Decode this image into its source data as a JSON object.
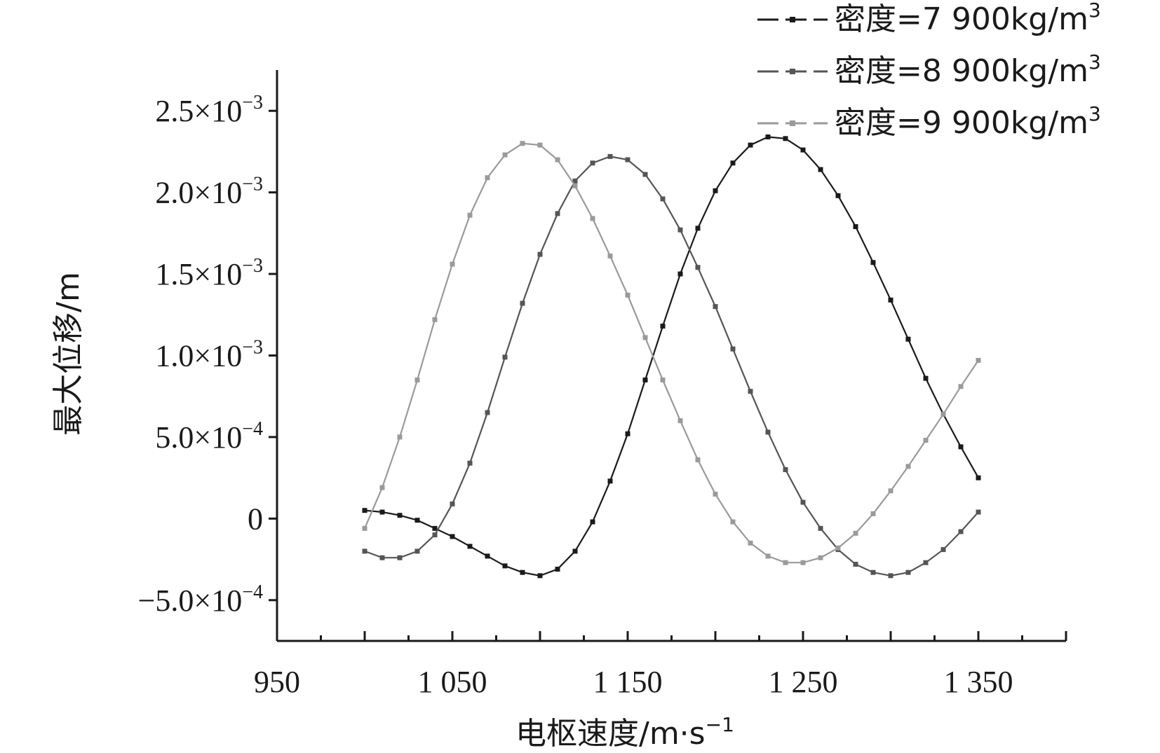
{
  "chart_data": {
    "type": "line",
    "title": "",
    "xlabel": "电枢速度/m·s",
    "xlabel_exp": "−1",
    "ylabel": "最大位移/m",
    "xlim": [
      950,
      1400
    ],
    "ylim": [
      -0.00075,
      0.00275
    ],
    "x_ticks": [
      {
        "value": 950,
        "label": "950"
      },
      {
        "value": 1050,
        "label": "1 050"
      },
      {
        "value": 1150,
        "label": "1 150"
      },
      {
        "value": 1250,
        "label": "1 250"
      },
      {
        "value": 1350,
        "label": "1 350"
      }
    ],
    "y_ticks": [
      {
        "value": 0.0025,
        "mant": "2.5×10",
        "exp": "−3"
      },
      {
        "value": 0.002,
        "mant": "2.0×10",
        "exp": "−3"
      },
      {
        "value": 0.0015,
        "mant": "1.5×10",
        "exp": "−3"
      },
      {
        "value": 0.001,
        "mant": "1.0×10",
        "exp": "−3"
      },
      {
        "value": 0.0005,
        "mant": "5.0×10",
        "exp": "−4"
      },
      {
        "value": 0,
        "mant": "0",
        "exp": ""
      },
      {
        "value": -0.0005,
        "mant": "−5.0×10",
        "exp": "−4"
      }
    ],
    "x": [
      1000,
      1010,
      1020,
      1030,
      1040,
      1050,
      1060,
      1070,
      1080,
      1090,
      1100,
      1110,
      1120,
      1130,
      1140,
      1150,
      1160,
      1170,
      1180,
      1190,
      1200,
      1210,
      1220,
      1230,
      1240,
      1250,
      1260,
      1270,
      1280,
      1290,
      1300,
      1310,
      1320,
      1330,
      1340,
      1350
    ],
    "series": [
      {
        "name": "密度=7 900kg/m",
        "name_exp": "3",
        "color": "#1a1a1a",
        "values": [
          5e-05,
          4e-05,
          2e-05,
          -1e-05,
          -6e-05,
          -0.00011,
          -0.00017,
          -0.00023,
          -0.00029,
          -0.00033,
          -0.00035,
          -0.00031,
          -0.0002,
          -2e-05,
          0.00023,
          0.00052,
          0.00085,
          0.00118,
          0.0015,
          0.00178,
          0.00201,
          0.00218,
          0.00229,
          0.00234,
          0.00233,
          0.00226,
          0.00214,
          0.00198,
          0.00179,
          0.00157,
          0.00134,
          0.0011,
          0.00086,
          0.00064,
          0.00044,
          0.00025
        ]
      },
      {
        "name": "密度=8 900kg/m",
        "name_exp": "3",
        "color": "#555555",
        "values": [
          -0.0002,
          -0.00024,
          -0.00024,
          -0.0002,
          -0.0001,
          9e-05,
          0.00034,
          0.00065,
          0.00099,
          0.00132,
          0.00162,
          0.00187,
          0.00207,
          0.00218,
          0.00222,
          0.0022,
          0.00211,
          0.00196,
          0.00177,
          0.00154,
          0.0013,
          0.00104,
          0.00078,
          0.00053,
          0.0003,
          0.0001,
          -6e-05,
          -0.00019,
          -0.00028,
          -0.00033,
          -0.00035,
          -0.00033,
          -0.00027,
          -0.00019,
          -8e-05,
          4e-05
        ]
      },
      {
        "name": "密度=9 900kg/m",
        "name_exp": "3",
        "color": "#9a9a9a",
        "values": [
          -6e-05,
          0.00019,
          0.0005,
          0.00085,
          0.00122,
          0.00156,
          0.00186,
          0.00209,
          0.00223,
          0.0023,
          0.00229,
          0.0022,
          0.00204,
          0.00184,
          0.00161,
          0.00137,
          0.00111,
          0.00085,
          0.0006,
          0.00036,
          0.00015,
          -2e-05,
          -0.00015,
          -0.00023,
          -0.00027,
          -0.00027,
          -0.00024,
          -0.00018,
          -9e-05,
          3e-05,
          0.00017,
          0.00032,
          0.00048,
          0.00064,
          0.00081,
          0.00097
        ]
      }
    ],
    "legend_position": "top-right",
    "grid": false
  }
}
